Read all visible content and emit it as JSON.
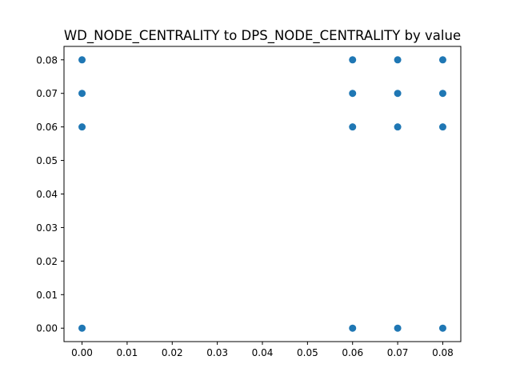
{
  "chart_data": {
    "type": "scatter",
    "title": "WD_NODE_CENTRALITY to DPS_NODE_CENTRALITY by value",
    "xlabel": "",
    "ylabel": "",
    "xlim": [
      -0.004,
      0.084
    ],
    "ylim": [
      -0.004,
      0.084
    ],
    "x_ticks": [
      0.0,
      0.01,
      0.02,
      0.03,
      0.04,
      0.05,
      0.06,
      0.07,
      0.08
    ],
    "y_ticks": [
      0.0,
      0.01,
      0.02,
      0.03,
      0.04,
      0.05,
      0.06,
      0.07,
      0.08
    ],
    "x_tick_labels": [
      "0.00",
      "0.01",
      "0.02",
      "0.03",
      "0.04",
      "0.05",
      "0.06",
      "0.07",
      "0.08"
    ],
    "y_tick_labels": [
      "0.00",
      "0.01",
      "0.02",
      "0.03",
      "0.04",
      "0.05",
      "0.06",
      "0.07",
      "0.08"
    ],
    "grid": false,
    "marker_color": "#1f77b4",
    "points": [
      {
        "x": 0.0,
        "y": 0.0
      },
      {
        "x": 0.0,
        "y": 0.06
      },
      {
        "x": 0.0,
        "y": 0.07
      },
      {
        "x": 0.0,
        "y": 0.08
      },
      {
        "x": 0.06,
        "y": 0.0
      },
      {
        "x": 0.06,
        "y": 0.06
      },
      {
        "x": 0.06,
        "y": 0.07
      },
      {
        "x": 0.06,
        "y": 0.08
      },
      {
        "x": 0.07,
        "y": 0.0
      },
      {
        "x": 0.07,
        "y": 0.06
      },
      {
        "x": 0.07,
        "y": 0.07
      },
      {
        "x": 0.07,
        "y": 0.08
      },
      {
        "x": 0.08,
        "y": 0.0
      },
      {
        "x": 0.08,
        "y": 0.06
      },
      {
        "x": 0.08,
        "y": 0.07
      },
      {
        "x": 0.08,
        "y": 0.08
      }
    ]
  }
}
